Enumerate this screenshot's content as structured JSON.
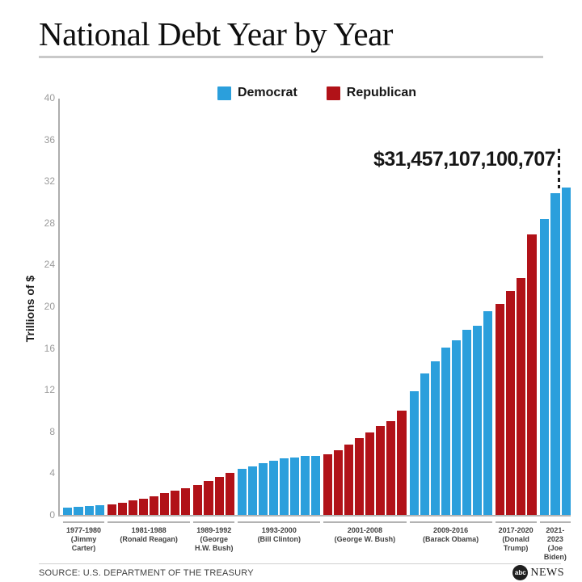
{
  "header": {
    "title": "National Debt Year by Year"
  },
  "annotation": {
    "debt_label": "$31,457,107,100,707"
  },
  "footer": {
    "source": "SOURCE: U.S. DEPARTMENT OF THE TREASURY",
    "logo_abc": "abc",
    "logo_news": "NEWS"
  },
  "colors": {
    "democrat": "#2B9FDC",
    "republican": "#B11218",
    "axis": "#AEAEAE",
    "tick_label": "#9B9B9B"
  },
  "chart_data": {
    "type": "bar",
    "title": "National Debt Year by Year",
    "xlabel": "",
    "ylabel": "Trillions of $",
    "ylim": [
      0,
      40
    ],
    "yticks": [
      0,
      4,
      8,
      12,
      16,
      20,
      24,
      28,
      32,
      36,
      40
    ],
    "grid": false,
    "legend_position": "top",
    "legend": [
      {
        "label": "Democrat",
        "color": "#2B9FDC"
      },
      {
        "label": "Republican",
        "color": "#B11218"
      }
    ],
    "annotation": {
      "text": "$31,457,107,100,707",
      "points_to_year": 2023
    },
    "groups": [
      {
        "years": "1977-1980",
        "president": "(Jimmy Carter)",
        "party": "Democrat",
        "values": [
          0.7,
          0.77,
          0.83,
          0.91
        ]
      },
      {
        "years": "1981-1988",
        "president": "(Ronald Reagan)",
        "party": "Republican",
        "values": [
          1.0,
          1.14,
          1.38,
          1.57,
          1.82,
          2.13,
          2.35,
          2.6
        ]
      },
      {
        "years": "1989-1992",
        "president": "(George H.W. Bush)",
        "party": "Republican",
        "values": [
          2.86,
          3.23,
          3.67,
          4.06
        ]
      },
      {
        "years": "1993-2000",
        "president": "(Bill Clinton)",
        "party": "Democrat",
        "values": [
          4.41,
          4.69,
          4.97,
          5.22,
          5.41,
          5.53,
          5.66,
          5.67
        ]
      },
      {
        "years": "2001-2008",
        "president": "(George W. Bush)",
        "party": "Republican",
        "values": [
          5.81,
          6.23,
          6.78,
          7.38,
          7.93,
          8.51,
          9.01,
          10.02
        ]
      },
      {
        "years": "2009-2016",
        "president": "(Barack Obama)",
        "party": "Democrat",
        "values": [
          11.91,
          13.56,
          14.79,
          16.07,
          16.74,
          17.82,
          18.15,
          19.57
        ]
      },
      {
        "years": "2017-2020",
        "president": "(Donald Trump)",
        "party": "Republican",
        "values": [
          20.24,
          21.52,
          22.72,
          26.95
        ]
      },
      {
        "years": "2021-2023",
        "president": "(Joe Biden)",
        "party": "Democrat",
        "values": [
          28.43,
          30.93,
          31.46
        ]
      }
    ]
  }
}
